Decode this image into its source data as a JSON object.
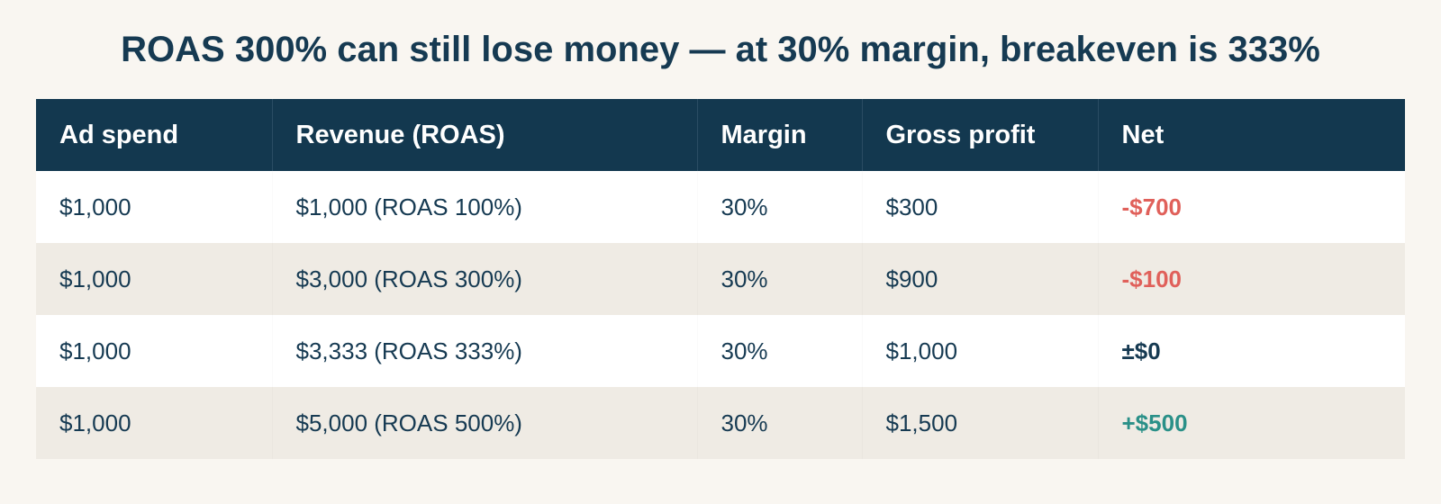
{
  "title": "ROAS 300% can still lose money — at 30% margin, breakeven is 333%",
  "colors": {
    "header_bg": "#13384f",
    "negative": "#e0605a",
    "neutral": "#163a52",
    "positive": "#2a9088"
  },
  "table": {
    "headers": [
      "Ad spend",
      "Revenue (ROAS)",
      "Margin",
      "Gross profit",
      "Net"
    ],
    "rows": [
      {
        "ad_spend": "$1,000",
        "revenue": "$1,000 (ROAS 100%)",
        "margin": "30%",
        "gross_profit": "$300",
        "net": "-$700"
      },
      {
        "ad_spend": "$1,000",
        "revenue": "$3,000 (ROAS 300%)",
        "margin": "30%",
        "gross_profit": "$900",
        "net": "-$100"
      },
      {
        "ad_spend": "$1,000",
        "revenue": "$3,333 (ROAS 333%)",
        "margin": "30%",
        "gross_profit": "$1,000",
        "net": "±$0"
      },
      {
        "ad_spend": "$1,000",
        "revenue": "$5,000 (ROAS 500%)",
        "margin": "30%",
        "gross_profit": "$1,500",
        "net": "+$500"
      }
    ]
  }
}
